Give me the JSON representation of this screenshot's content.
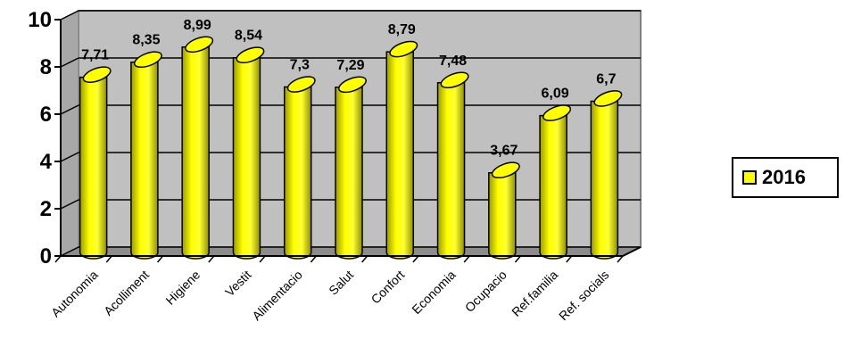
{
  "chart_data": {
    "type": "bar",
    "categories": [
      "Autonomia",
      "Acolliment",
      "Higiene",
      "Vestit",
      "Alimentacio",
      "Salut",
      "Confort",
      "Economia",
      "Ocupacio",
      "Ref.familia",
      "Ref. socials"
    ],
    "series": [
      {
        "name": "2016",
        "values": [
          7.71,
          8.35,
          8.99,
          8.54,
          7.3,
          7.29,
          8.79,
          7.48,
          3.67,
          6.09,
          6.7
        ]
      }
    ],
    "data_labels": [
      "7,71",
      "8,35",
      "8,99",
      "8,54",
      "7,3",
      "7,29",
      "8,79",
      "7,48",
      "3,67",
      "6,09",
      "6,7"
    ],
    "y_ticks": [
      0,
      2,
      4,
      6,
      8,
      10
    ],
    "ylim": [
      0,
      10
    ],
    "grid": true,
    "legend_position": "right",
    "colors": {
      "bar": "#ffff00",
      "bar_shadow": "#b3b300",
      "wall": "#c0c0c0",
      "floor": "#8c8c8c"
    }
  },
  "legend": {
    "label": "2016"
  }
}
